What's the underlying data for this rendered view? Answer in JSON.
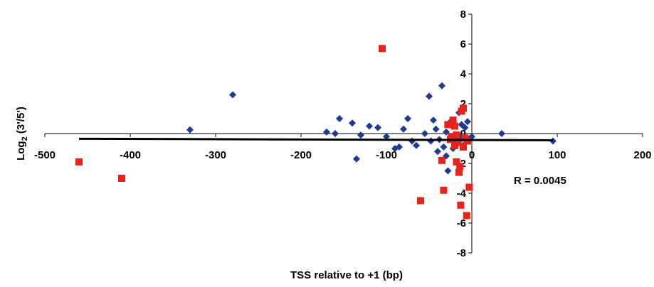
{
  "chart_data": {
    "type": "scatter",
    "xlabel": "TSS relative to +1 (bp)",
    "ylabel_main": "Log",
    "ylabel_sub": "2",
    "ylabel_rest": " (3'/5')",
    "xlim": [
      -500,
      200
    ],
    "ylim": [
      -8,
      8
    ],
    "xticks": [
      -500,
      -400,
      -300,
      -200,
      -100,
      0,
      100,
      200
    ],
    "yticks": [
      -8,
      -6,
      -4,
      -2,
      0,
      2,
      4,
      6,
      8
    ],
    "grid": false,
    "annotation": "R = 0.0045",
    "colors": {
      "series_blue": "#1f3a93",
      "series_red": "#e8231a",
      "axis": "#000000"
    },
    "trendline": {
      "x": [
        -460,
        95
      ],
      "y": [
        -0.35,
        -0.45
      ]
    },
    "series": [
      {
        "marker": "diamond",
        "color": "#1f3a93",
        "points": [
          [
            -330,
            0.25
          ],
          [
            -280,
            2.6
          ],
          [
            -170,
            0.1
          ],
          [
            -160,
            0.0
          ],
          [
            -155,
            1.0
          ],
          [
            -140,
            0.7
          ],
          [
            -135,
            -1.7
          ],
          [
            -130,
            -0.1
          ],
          [
            -120,
            0.5
          ],
          [
            -110,
            0.4
          ],
          [
            -100,
            -0.2
          ],
          [
            -90,
            -1.0
          ],
          [
            -85,
            -0.9
          ],
          [
            -80,
            0.3
          ],
          [
            -75,
            1.0
          ],
          [
            -70,
            -0.5
          ],
          [
            -65,
            -0.8
          ],
          [
            -55,
            0.0
          ],
          [
            -50,
            2.5
          ],
          [
            -48,
            -0.5
          ],
          [
            -45,
            0.9
          ],
          [
            -42,
            0.3
          ],
          [
            -40,
            -1.2
          ],
          [
            -38,
            -0.4
          ],
          [
            -35,
            3.2
          ],
          [
            -33,
            -0.9
          ],
          [
            -30,
            0.1
          ],
          [
            -30,
            -1.5
          ],
          [
            -28,
            -2.5
          ],
          [
            -25,
            0.8
          ],
          [
            -22,
            -1.0
          ],
          [
            -20,
            -0.6
          ],
          [
            -18,
            -0.3
          ],
          [
            -15,
            1.4
          ],
          [
            -12,
            0.6
          ],
          [
            -10,
            -0.8
          ],
          [
            -8,
            0.4
          ],
          [
            -5,
            0.8
          ],
          [
            -3,
            -0.4
          ],
          [
            0,
            -0.2
          ],
          [
            -14,
            -0.2
          ],
          [
            35,
            0.0
          ],
          [
            95,
            -0.5
          ]
        ]
      },
      {
        "marker": "square",
        "color": "#e8231a",
        "points": [
          [
            -460,
            -1.9
          ],
          [
            -410,
            -3.0
          ],
          [
            -105,
            5.7
          ],
          [
            -60,
            -4.5
          ],
          [
            -35,
            -1.8
          ],
          [
            -33,
            -3.8
          ],
          [
            -28,
            0.6
          ],
          [
            -25,
            -0.4
          ],
          [
            -22,
            0.9
          ],
          [
            -20,
            0.5
          ],
          [
            -18,
            -0.1
          ],
          [
            -18,
            -1.9
          ],
          [
            -16,
            -0.6
          ],
          [
            -15,
            -2.6
          ],
          [
            -14,
            -2.2
          ],
          [
            -13,
            -4.8
          ],
          [
            -12,
            1.5
          ],
          [
            -10,
            1.7
          ],
          [
            -10,
            -0.9
          ],
          [
            -8,
            -0.3
          ],
          [
            -6,
            -5.5
          ],
          [
            -5,
            -0.5
          ],
          [
            -3,
            -3.6
          ],
          [
            -24,
            -0.2
          ],
          [
            -20,
            -0.8
          ]
        ]
      }
    ]
  }
}
